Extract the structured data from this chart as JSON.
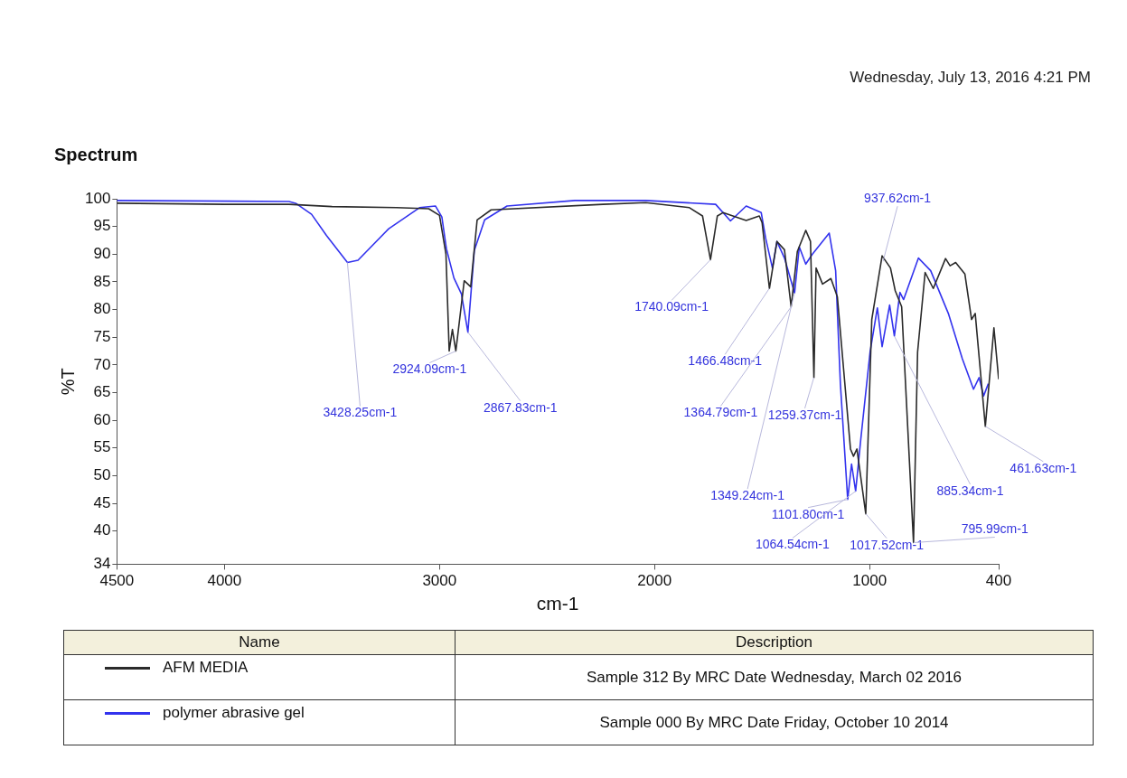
{
  "chart_data": {
    "type": "line",
    "title": "Spectrum",
    "xlabel": "cm-1",
    "ylabel": "%T",
    "legend_title": "Name",
    "legend": "bottom",
    "grid": false,
    "marker": "none",
    "line_style": "solid",
    "xlim": [
      4500,
      400
    ],
    "xticks": [
      4500,
      4000,
      3000,
      2000,
      1000,
      400
    ],
    "ylim": [
      34,
      100
    ],
    "yticks": [
      34,
      40,
      45,
      50,
      55,
      60,
      65,
      70,
      75,
      80,
      85,
      90,
      95,
      100
    ],
    "series": [
      {
        "name": "AFM MEDIA",
        "color": "#2a2a2a",
        "x": [
          4500,
          4000,
          3700,
          3500,
          3200,
          3050,
          3000,
          2970,
          2955,
          2940,
          2924,
          2885,
          2855,
          2825,
          2760,
          2240,
          2041,
          1838,
          1777,
          1740,
          1708,
          1682,
          1574,
          1513,
          1500,
          1466,
          1431,
          1396,
          1365,
          1336,
          1297,
          1275,
          1259,
          1249,
          1219,
          1180,
          1150,
          1089,
          1075,
          1059,
          1018,
          990,
          942,
          903,
          881,
          851,
          796,
          777,
          742,
          704,
          647,
          626,
          600,
          557,
          526,
          509,
          462,
          422,
          400
        ],
        "values": [
          99.2,
          99,
          99,
          98.6,
          98.4,
          98.2,
          97,
          90,
          72.5,
          76.4,
          72.5,
          85.2,
          84.1,
          96.2,
          98,
          99,
          99.3,
          98.4,
          96.9,
          89,
          96.9,
          97.5,
          96.1,
          96.9,
          95.7,
          83.8,
          92.3,
          90.8,
          80.5,
          90.5,
          94.3,
          92.3,
          67.7,
          87.5,
          84.6,
          85.6,
          82.3,
          54.8,
          53.5,
          54.8,
          43.1,
          78.2,
          89.7,
          87.5,
          83.4,
          80.5,
          37.9,
          72.3,
          86.7,
          83.8,
          89.2,
          87.9,
          88.5,
          86.4,
          78.2,
          79.3,
          58.9,
          76.7,
          67.4
        ]
      },
      {
        "name": "polymer abrasive gel",
        "color": "#3333ee",
        "x": [
          4500,
          3700,
          3669,
          3595,
          3526,
          3428,
          3379,
          3236,
          3093,
          3019,
          2989,
          2968,
          2933,
          2898,
          2868,
          2838,
          2790,
          2686,
          2370,
          2041,
          1716,
          1647,
          1574,
          1504,
          1483,
          1452,
          1431,
          1396,
          1349,
          1327,
          1297,
          1266,
          1188,
          1158,
          1136,
          1102,
          1084,
          1065,
          1041,
          998,
          964,
          942,
          907,
          885,
          859,
          842,
          773,
          716,
          634,
          569,
          517,
          491,
          470,
          448
        ],
        "values": [
          99.7,
          99.5,
          99.2,
          97.2,
          93.4,
          88.5,
          88.9,
          94.6,
          98.4,
          98.7,
          96.7,
          91,
          85.7,
          82.8,
          75.9,
          90.7,
          96.2,
          98.7,
          99.7,
          99.7,
          99,
          96,
          98.7,
          97.5,
          92.8,
          87.5,
          92.3,
          89.3,
          83,
          91.3,
          88.2,
          90,
          93.8,
          87,
          66.6,
          45.7,
          52.1,
          47.2,
          56.6,
          72.3,
          80.3,
          73.3,
          80.8,
          75.2,
          83.1,
          81.8,
          89.3,
          87,
          79.3,
          71.1,
          65.6,
          67.7,
          64.4,
          66.6
        ]
      }
    ],
    "annotations": [
      "Wednesday, July 13, 2016 4:21 PM",
      "Description",
      "Sample 312 By MRC Date Wednesday, March 02 2016",
      "Sample 000 By MRC Date Friday, October 10 2014",
      {
        "text": "3428.25cm-1",
        "x": 3428.25,
        "y": 88.5
      },
      {
        "text": "2924.09cm-1",
        "x": 2924.09,
        "y": 72.5
      },
      {
        "text": "2867.83cm-1",
        "x": 2867.83,
        "y": 75.9
      },
      {
        "text": "1740.09cm-1",
        "x": 1740.09,
        "y": 89
      },
      {
        "text": "1466.48cm-1",
        "x": 1466.48,
        "y": 83.8
      },
      {
        "text": "1364.79cm-1",
        "x": 1364.79,
        "y": 80.5
      },
      {
        "text": "1259.37cm-1",
        "x": 1259.37,
        "y": 67.7
      },
      {
        "text": "1349.24cm-1",
        "x": 1349.24,
        "y": 83
      },
      {
        "text": "1101.80cm-1",
        "x": 1101.8,
        "y": 45.7
      },
      {
        "text": "1064.54cm-1",
        "x": 1064.54,
        "y": 47.2
      },
      {
        "text": "1017.52cm-1",
        "x": 1017.52,
        "y": 43.1
      },
      {
        "text": "937.62cm-1",
        "x": 937.62,
        "y": 88.7
      },
      {
        "text": "885.34cm-1",
        "x": 885.34,
        "y": 75.2
      },
      {
        "text": "795.99cm-1",
        "x": 795.99,
        "y": 37.9
      },
      {
        "text": "461.63cm-1",
        "x": 461.63,
        "y": 58.9
      }
    ]
  }
}
